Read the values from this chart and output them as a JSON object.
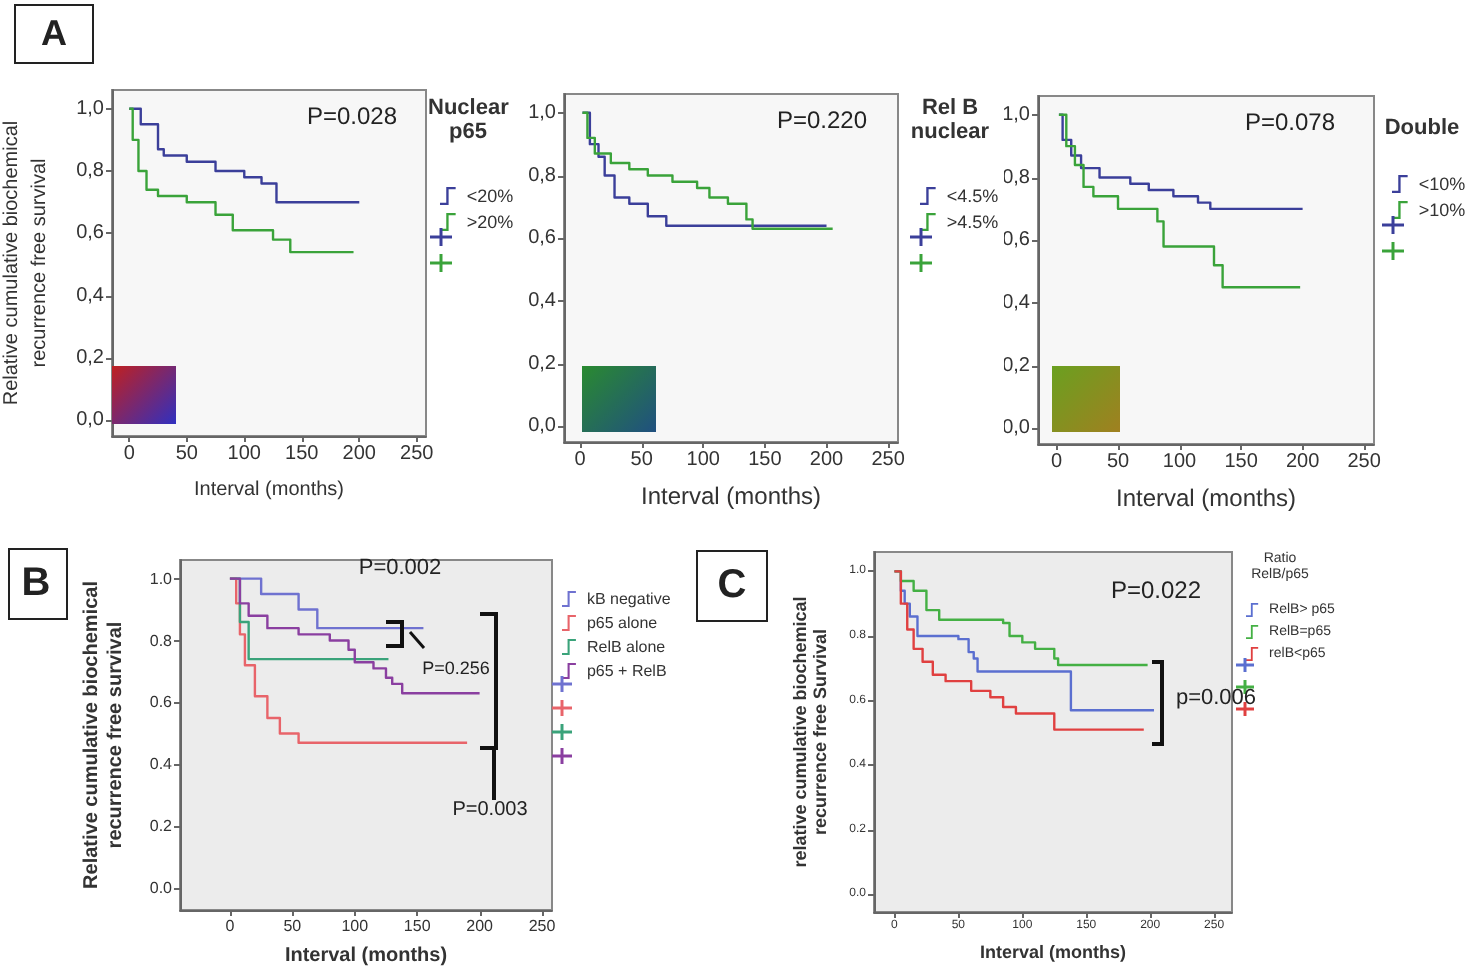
{
  "chart_data": [
    {
      "type": "step",
      "xlabel": "Interval (months)",
      "ylabel": "Relative cumulative biochemical recurrence free survival",
      "legend_title": "Nuclear p65",
      "annotations": [
        "A",
        "P=0.028"
      ],
      "xlim": [
        -15,
        258
      ],
      "ylim": [
        -0.05,
        1.06
      ],
      "xticks": [
        0,
        50,
        100,
        150,
        200,
        250
      ],
      "yticks": [
        {
          "value": 0,
          "label": "0,0"
        },
        {
          "value": 0.2,
          "label": "0,2"
        },
        {
          "value": 0.4,
          "label": "0,4"
        },
        {
          "value": 0.6,
          "label": "0,6"
        },
        {
          "value": 0.8,
          "label": "0,8"
        },
        {
          "value": 1,
          "label": "1,0"
        }
      ],
      "grid": false,
      "legend": "right",
      "marker": "none",
      "line_style": "solid",
      "series": [
        {
          "name": "<20%",
          "color": "#3b3f9a",
          "x": [
            0,
            10,
            25,
            30,
            50,
            75,
            100,
            115,
            128,
            200
          ],
          "values": [
            1,
            0.95,
            0.87,
            0.85,
            0.83,
            0.8,
            0.78,
            0.76,
            0.7,
            0.7
          ]
        },
        {
          "name": ">20%",
          "color": "#3aa33a",
          "x": [
            0,
            3,
            8,
            15,
            25,
            50,
            75,
            90,
            125,
            140,
            195
          ],
          "values": [
            1,
            0.9,
            0.8,
            0.74,
            0.72,
            0.7,
            0.66,
            0.61,
            0.58,
            0.54,
            0.54
          ]
        }
      ]
    },
    {
      "type": "step",
      "xlabel": "Interval (months)",
      "legend_title": "Rel B nuclear",
      "annotations": [
        "P=0.220"
      ],
      "xlim": [
        -13,
        258
      ],
      "ylim": [
        -0.05,
        1.06
      ],
      "xticks": [
        0,
        50,
        100,
        150,
        200,
        250
      ],
      "yticks": [
        {
          "value": 0,
          "label": "0,0"
        },
        {
          "value": 0.2,
          "label": "0,2"
        },
        {
          "value": 0.4,
          "label": "0,4"
        },
        {
          "value": 0.6,
          "label": "0,6"
        },
        {
          "value": 0.8,
          "label": "0,8"
        },
        {
          "value": 1,
          "label": "1,0"
        }
      ],
      "grid": false,
      "legend": "right",
      "marker": "none",
      "line_style": "solid",
      "series": [
        {
          "name": "<4.5%",
          "color": "#3b3f9a",
          "x": [
            2,
            8,
            15,
            20,
            28,
            40,
            55,
            70,
            200
          ],
          "values": [
            1,
            0.9,
            0.86,
            0.8,
            0.73,
            0.71,
            0.67,
            0.64,
            0.64
          ]
        },
        {
          "name": ">4.5%",
          "color": "#3aa33a",
          "x": [
            2,
            6,
            12,
            25,
            40,
            55,
            75,
            95,
            105,
            120,
            135,
            140,
            205
          ],
          "values": [
            1,
            0.92,
            0.87,
            0.84,
            0.82,
            0.8,
            0.78,
            0.76,
            0.73,
            0.71,
            0.66,
            0.63,
            0.63
          ]
        }
      ]
    },
    {
      "type": "step",
      "xlabel": "Interval (months)",
      "legend_title": "Double",
      "annotations": [
        "P=0.078"
      ],
      "xlim": [
        -15,
        258
      ],
      "ylim": [
        -0.05,
        1.06
      ],
      "xticks": [
        0,
        50,
        100,
        150,
        200,
        250
      ],
      "yticks": [
        {
          "value": 0,
          "label": "0,0"
        },
        {
          "value": 0.2,
          "label": "0,2"
        },
        {
          "value": 0.4,
          "label": "0,4"
        },
        {
          "value": 0.6,
          "label": "0,6"
        },
        {
          "value": 0.8,
          "label": "0,8"
        },
        {
          "value": 1,
          "label": "1,0"
        }
      ],
      "grid": false,
      "legend": "right",
      "marker": "none",
      "line_style": "solid",
      "series": [
        {
          "name": "<10%",
          "color": "#3b3f9a",
          "x": [
            2,
            5,
            12,
            20,
            35,
            60,
            75,
            95,
            115,
            125,
            200
          ],
          "values": [
            1,
            0.92,
            0.87,
            0.83,
            0.8,
            0.78,
            0.76,
            0.74,
            0.72,
            0.7,
            0.7
          ]
        },
        {
          "name": ">10%",
          "color": "#3aa33a",
          "x": [
            2,
            8,
            15,
            22,
            30,
            50,
            82,
            87,
            128,
            135,
            198
          ],
          "values": [
            1,
            0.9,
            0.84,
            0.77,
            0.74,
            0.7,
            0.66,
            0.58,
            0.52,
            0.45,
            0.45
          ]
        }
      ]
    },
    {
      "type": "step",
      "xlabel": "Interval (months)",
      "ylabel": "Relative cumulative biochemical recurrence free survival",
      "annotations": [
        "B",
        "P=0.002",
        "P=0.256",
        "P=0.003"
      ],
      "xlim": [
        -40,
        258
      ],
      "ylim": [
        -0.07,
        1.06
      ],
      "xticks": [
        0,
        50,
        100,
        150,
        200,
        250
      ],
      "yticks": [
        {
          "value": 0,
          "label": "0.0"
        },
        0.2,
        0.4,
        0.6,
        0.8,
        {
          "value": 1,
          "label": "1.0"
        }
      ],
      "grid": false,
      "legend": "right",
      "marker": "none",
      "line_style": "solid",
      "series": [
        {
          "name": "kB negative",
          "color": "#6f72d0",
          "x": [
            0,
            25,
            55,
            70,
            155
          ],
          "values": [
            1,
            0.95,
            0.9,
            0.84,
            0.84
          ]
        },
        {
          "name": "p65 alone",
          "color": "#e8646a",
          "x": [
            0,
            5,
            8,
            12,
            20,
            30,
            40,
            55,
            190
          ],
          "values": [
            1,
            0.92,
            0.82,
            0.72,
            0.62,
            0.55,
            0.5,
            0.47,
            0.47
          ]
        },
        {
          "name": "RelB alone",
          "color": "#3aa37a",
          "x": [
            0,
            8,
            15,
            127
          ],
          "values": [
            1,
            0.86,
            0.74,
            0.74
          ]
        },
        {
          "name": "p65 + RelB",
          "color": "#8a3fa0",
          "x": [
            0,
            8,
            15,
            30,
            55,
            80,
            95,
            100,
            115,
            125,
            130,
            138,
            200
          ],
          "values": [
            1,
            0.92,
            0.88,
            0.84,
            0.82,
            0.8,
            0.77,
            0.73,
            0.71,
            0.68,
            0.66,
            0.63,
            0.63
          ]
        }
      ]
    },
    {
      "type": "step",
      "xlabel": "Interval (months)",
      "ylabel": "relative cumulative biochemical recurrence free Survival",
      "legend_title": "Ratio RelB/p65",
      "annotations": [
        "C",
        "P=0.022",
        "p=0.006"
      ],
      "xlim": [
        -16,
        264
      ],
      "ylim": [
        -0.055,
        1.06
      ],
      "xticks": [
        0,
        50,
        100,
        150,
        200,
        250
      ],
      "yticks": [
        {
          "value": 0,
          "label": "0.0"
        },
        0.2,
        0.4,
        0.6,
        0.8,
        {
          "value": 1,
          "label": "1.0"
        }
      ],
      "grid": false,
      "legend": "right",
      "marker": "none",
      "line_style": "solid",
      "series": [
        {
          "name": "RelB> p65",
          "color": "#5b6fd0",
          "x": [
            0,
            5,
            8,
            12,
            18,
            50,
            58,
            62,
            65,
            138,
            203
          ],
          "values": [
            1,
            0.94,
            0.9,
            0.86,
            0.8,
            0.79,
            0.75,
            0.73,
            0.69,
            0.57,
            0.57
          ]
        },
        {
          "name": "RelB=p65",
          "color": "#44b044",
          "x": [
            0,
            5,
            15,
            25,
            35,
            85,
            90,
            100,
            110,
            125,
            128,
            198
          ],
          "values": [
            1,
            0.97,
            0.94,
            0.88,
            0.85,
            0.84,
            0.8,
            0.78,
            0.76,
            0.73,
            0.71,
            0.71
          ]
        },
        {
          "name": "relB<p65",
          "color": "#e04040",
          "x": [
            0,
            5,
            10,
            15,
            22,
            30,
            40,
            60,
            75,
            85,
            95,
            125,
            195
          ],
          "values": [
            1,
            0.9,
            0.82,
            0.76,
            0.72,
            0.68,
            0.66,
            0.63,
            0.61,
            0.58,
            0.56,
            0.51,
            0.51
          ]
        }
      ]
    }
  ]
}
